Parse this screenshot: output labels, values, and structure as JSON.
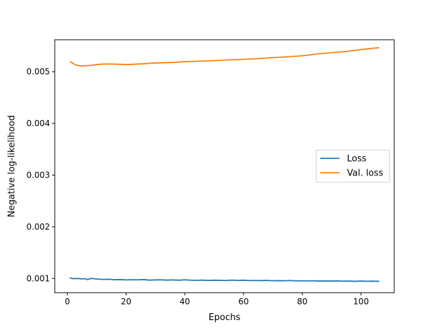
{
  "chart_data": {
    "type": "line",
    "title": "",
    "xlabel": "Epochs",
    "ylabel": "Negative log-likelihood",
    "xlim": [
      -4.3,
      111.3
    ],
    "ylim": [
      0.000725,
      0.00562
    ],
    "xticks": [
      0,
      20,
      40,
      60,
      80,
      100
    ],
    "yticks": [
      0.001,
      0.002,
      0.003,
      0.004,
      0.005
    ],
    "ytick_labels": [
      "0.001",
      "0.002",
      "0.003",
      "0.004",
      "0.005"
    ],
    "grid": false,
    "legend_placement": "center-right",
    "series": [
      {
        "name": "Loss",
        "color": "#1f77b4",
        "x": [
          1,
          2,
          3,
          4,
          5,
          6,
          7,
          8,
          9,
          10,
          12,
          14,
          16,
          18,
          20,
          22,
          24,
          26,
          28,
          30,
          32,
          34,
          36,
          38,
          40,
          42,
          44,
          46,
          48,
          50,
          52,
          54,
          56,
          58,
          60,
          62,
          64,
          66,
          68,
          70,
          72,
          74,
          76,
          78,
          80,
          82,
          84,
          86,
          88,
          90,
          92,
          94,
          96,
          98,
          100,
          102,
          104,
          106
        ],
        "y": [
          0.00101,
          0.000995,
          0.001,
          0.000998,
          0.000992,
          0.000995,
          0.000978,
          0.001,
          0.000995,
          0.00099,
          0.000982,
          0.000985,
          0.000975,
          0.000978,
          0.000972,
          0.000975,
          0.000974,
          0.000978,
          0.000968,
          0.000972,
          0.000974,
          0.000968,
          0.000972,
          0.000966,
          0.000974,
          0.000967,
          0.000964,
          0.000968,
          0.000962,
          0.000966,
          0.000964,
          0.00096,
          0.000968,
          0.000962,
          0.000966,
          0.000959,
          0.000962,
          0.000958,
          0.000963,
          0.000955,
          0.000958,
          0.000955,
          0.00096,
          0.000952,
          0.000955,
          0.000952,
          0.000956,
          0.00095,
          0.000953,
          0.00095,
          0.000953,
          0.000947,
          0.00095,
          0.000945,
          0.00095,
          0.000946,
          0.000948,
          0.000945
        ]
      },
      {
        "name": "Val. loss",
        "color": "#ff7f0e",
        "x": [
          1,
          2,
          3,
          4,
          5,
          6,
          8,
          10,
          12,
          14,
          16,
          18,
          20,
          22,
          24,
          26,
          28,
          30,
          35,
          40,
          45,
          50,
          55,
          60,
          65,
          70,
          75,
          80,
          85,
          90,
          95,
          100,
          103,
          106
        ],
        "y": [
          0.005195,
          0.00516,
          0.00513,
          0.005118,
          0.005115,
          0.005118,
          0.005125,
          0.00514,
          0.00515,
          0.00515,
          0.005148,
          0.005145,
          0.00514,
          0.005145,
          0.00515,
          0.005155,
          0.005165,
          0.00517,
          0.00518,
          0.005195,
          0.005205,
          0.005215,
          0.00523,
          0.00524,
          0.005255,
          0.005275,
          0.00529,
          0.00531,
          0.005345,
          0.00537,
          0.005395,
          0.00543,
          0.00545,
          0.005465
        ]
      }
    ]
  }
}
